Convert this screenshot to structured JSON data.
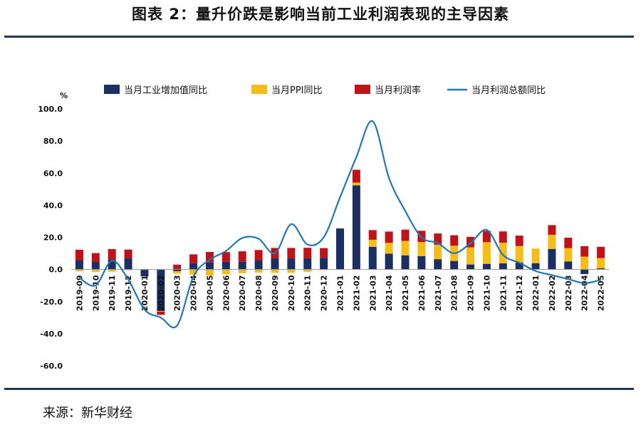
{
  "figure_title": "图表 2：量升价跌是影响当前工业利润表现的主导因素",
  "source": "来源：新华财经",
  "colors": {
    "industrial_value_added": "#1b2f63",
    "ppi": "#f6bd18",
    "profit_margin": "#c0121b",
    "total_profit": "#1f77b4",
    "rule": "#20394e"
  },
  "chart_data": {
    "type": "bar",
    "stacked": true,
    "unit_label": "%",
    "categories": [
      "2019-09",
      "2019-10",
      "2019-11",
      "2019-12",
      "2020-01",
      "2020-02",
      "2020-03",
      "2020-04",
      "2020-05",
      "2020-06",
      "2020-07",
      "2020-08",
      "2020-09",
      "2020-10",
      "2020-11",
      "2020-12",
      "2021-01",
      "2021-02",
      "2021-03",
      "2021-04",
      "2021-05",
      "2021-06",
      "2021-07",
      "2021-08",
      "2021-09",
      "2021-10",
      "2021-11",
      "2021-12",
      "2022-01",
      "2022-02",
      "2022-03",
      "2022-04",
      "2022-05"
    ],
    "ylim": [
      -60,
      100
    ],
    "yticks": [
      "100.0",
      "80.0",
      "60.0",
      "40.0",
      "20.0",
      "0.0",
      "-20.0",
      "-40.0",
      "-60.0"
    ],
    "ytick_values": [
      100,
      80,
      60,
      40,
      20,
      0,
      -20,
      -40,
      -60
    ],
    "grid": false,
    "legend_position": "top",
    "series": [
      {
        "name": "当月工业增加值同比",
        "kind": "bar",
        "values": [
          5.8,
          4.7,
          6.2,
          6.9,
          -4.3,
          -25.9,
          -1.1,
          3.9,
          4.4,
          4.8,
          4.8,
          5.6,
          6.9,
          6.9,
          7.0,
          7.3,
          25.5,
          52.4,
          14.1,
          9.8,
          8.8,
          8.3,
          6.4,
          5.3,
          3.1,
          3.5,
          3.8,
          4.3,
          3.9,
          12.8,
          5.0,
          -2.9,
          0.7
        ]
      },
      {
        "name": "当月PPI同比",
        "kind": "bar",
        "values": [
          -1.2,
          -1.6,
          -1.4,
          -0.5,
          0.1,
          -0.4,
          -1.5,
          -3.1,
          -3.7,
          -3.0,
          -2.4,
          -2.0,
          -2.1,
          -2.1,
          -1.5,
          -0.4,
          0.3,
          1.7,
          4.4,
          6.8,
          9.0,
          8.8,
          9.0,
          9.5,
          10.7,
          13.5,
          12.9,
          10.3,
          9.1,
          8.8,
          8.3,
          8.0,
          6.4
        ]
      },
      {
        "name": "当月利润率",
        "kind": "bar",
        "values": [
          6.5,
          5.5,
          6.5,
          5.5,
          0.0,
          -2.0,
          3.0,
          5.5,
          6.5,
          6.0,
          6.5,
          6.5,
          6.5,
          6.5,
          6.5,
          6.0,
          0.0,
          8.0,
          6.0,
          7.0,
          7.0,
          7.0,
          7.0,
          6.5,
          6.5,
          7.0,
          7.0,
          6.5,
          0.0,
          6.0,
          6.5,
          6.5,
          7.0
        ]
      },
      {
        "name": "当月利润总额同比",
        "kind": "line",
        "values": [
          -5.3,
          -9.9,
          5.4,
          -6.3,
          -25.0,
          -30.0,
          -34.9,
          -4.3,
          6.0,
          11.5,
          19.6,
          19.1,
          10.1,
          28.2,
          15.5,
          20.1,
          45.0,
          70.0,
          92.3,
          57.0,
          36.4,
          20.0,
          16.4,
          10.1,
          16.3,
          24.6,
          9.0,
          4.2,
          -1.0,
          -3.5,
          -6.0,
          -8.5,
          -6.5
        ]
      }
    ]
  }
}
